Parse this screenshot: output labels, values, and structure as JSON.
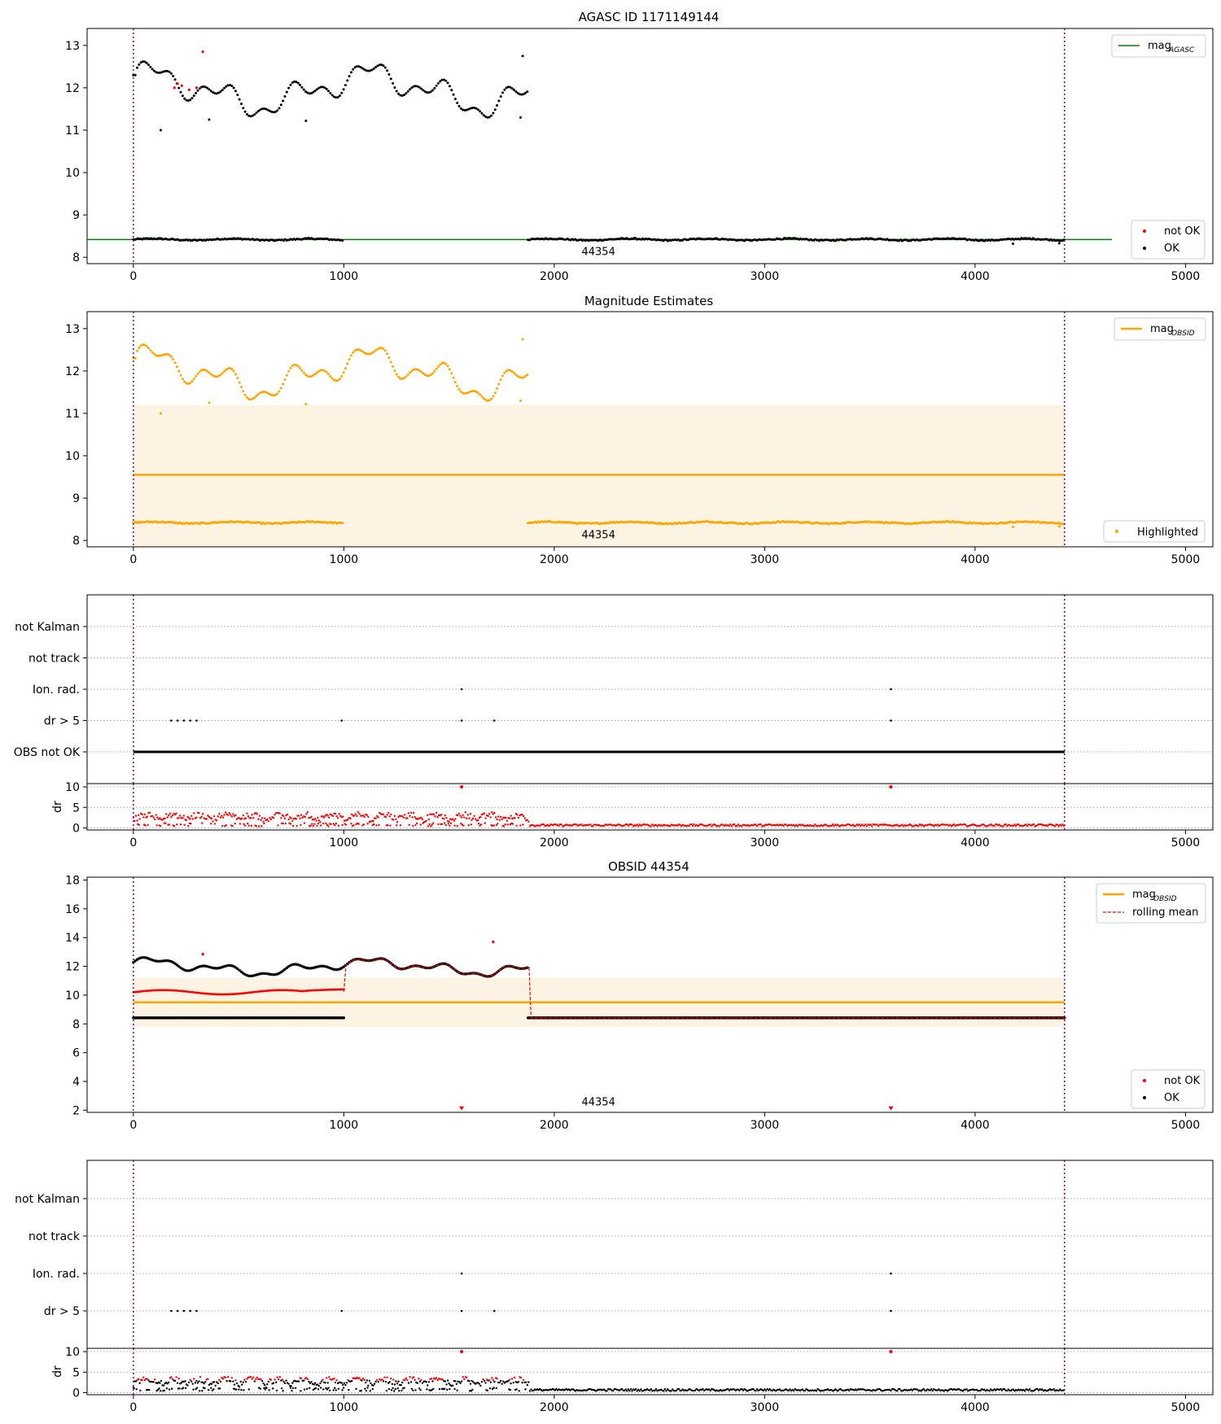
{
  "figure": {
    "colors": {
      "ok": "#000000",
      "not_ok": "#ff0000",
      "agasc_line": "#008000",
      "obsid_line": "#ffa500",
      "band": "#fdf3e3",
      "vline": "#800080",
      "dr": "#ff0000"
    }
  },
  "chart_data": [
    {
      "type": "scatter",
      "title": "AGASC ID 1171149144",
      "xlim": [
        -220,
        5130
      ],
      "ylim": [
        7.85,
        13.4
      ],
      "xticks": [
        0,
        1000,
        2000,
        3000,
        4000,
        5000
      ],
      "yticks": [
        8,
        9,
        10,
        11,
        12,
        13
      ],
      "vlines": [
        0,
        4425
      ],
      "hline": {
        "value": 8.42,
        "x_range": [
          -220,
          4650
        ],
        "label": "mag",
        "label_sub": "AGASC"
      },
      "annotations": [
        {
          "text": "44354",
          "x": 2210,
          "y": 8.15
        }
      ],
      "legend_top": [
        "mag_AGASC"
      ],
      "legend_bottom": [
        "not OK",
        "OK"
      ],
      "series": [
        {
          "name": "OK",
          "points": "main"
        },
        {
          "name": "not OK",
          "points": [
            [
              195,
              12.0
            ],
            [
              230,
              12.05
            ],
            [
              265,
              11.95
            ],
            [
              300,
              12.0
            ],
            [
              330,
              12.85
            ],
            [
              210,
              12.1
            ]
          ]
        }
      ]
    },
    {
      "type": "scatter",
      "title": "Magnitude Estimates",
      "xlim": [
        -220,
        5130
      ],
      "ylim": [
        7.85,
        13.4
      ],
      "xticks": [
        0,
        1000,
        2000,
        3000,
        4000,
        5000
      ],
      "yticks": [
        8,
        9,
        10,
        11,
        12,
        13
      ],
      "vlines": [
        0,
        4425
      ],
      "band": {
        "x": [
          0,
          4425
        ],
        "y": [
          7.85,
          11.2
        ]
      },
      "hline": {
        "value": 9.55,
        "x_range": [
          0,
          4425
        ],
        "label": "mag",
        "label_sub": "OBSID"
      },
      "annotations": [
        {
          "text": "44354",
          "x": 2210,
          "y": 8.15
        }
      ],
      "legend_top": [
        "mag_OBSID"
      ],
      "legend_bottom": [
        "Highlighted"
      ]
    },
    {
      "type": "scatter",
      "categories": [
        "not Kalman",
        "not track",
        "Ion. rad.",
        "dr > 5",
        "OBS not OK"
      ],
      "xlim": [
        -220,
        5130
      ],
      "xticks": [
        0,
        1000,
        2000,
        3000,
        4000,
        5000
      ],
      "vlines": [
        0,
        4425
      ],
      "flags": {
        "Ion. rad.": [
          1560,
          3600
        ],
        "dr > 5": [
          180,
          210,
          240,
          270,
          300,
          990,
          1560,
          1715,
          3600
        ],
        "OBS not OK": "continuous 0-4425"
      },
      "dr_panel": {
        "ylabel": "dr",
        "yticks": [
          0,
          5,
          10
        ],
        "ylim": [
          -0.5,
          10.8
        ],
        "spikes_at_10": [
          1560,
          3600
        ]
      }
    },
    {
      "type": "scatter",
      "title": "OBSID 44354",
      "xlim": [
        -220,
        5130
      ],
      "ylim": [
        1.85,
        18.2
      ],
      "xticks": [
        0,
        1000,
        2000,
        3000,
        4000,
        5000
      ],
      "yticks": [
        2,
        4,
        6,
        8,
        10,
        12,
        14,
        16,
        18
      ],
      "vlines": [
        0,
        4425
      ],
      "band": {
        "x": [
          0,
          4425
        ],
        "y": [
          7.8,
          11.2
        ]
      },
      "hline": {
        "value": 9.5,
        "x_range": [
          0,
          4425
        ],
        "label": "mag",
        "label_sub": "OBSID"
      },
      "annotations": [
        {
          "text": "44354",
          "x": 2210,
          "y": 2.6
        }
      ],
      "markers_low": [
        1560,
        3600
      ],
      "legend_top": [
        "mag_OBSID",
        "rolling mean"
      ],
      "legend_bottom": [
        "not OK",
        "OK"
      ]
    },
    {
      "type": "scatter",
      "categories": [
        "not Kalman",
        "not track",
        "Ion. rad.",
        "dr > 5"
      ],
      "xlim": [
        -220,
        5130
      ],
      "xticks": [
        0,
        1000,
        2000,
        3000,
        4000,
        5000
      ],
      "vlines": [
        0,
        4425
      ],
      "flags": {
        "Ion. rad.": [
          1560,
          3600
        ],
        "dr > 5": [
          180,
          210,
          240,
          270,
          300,
          990,
          1560,
          1715,
          3600
        ]
      },
      "dr_panel": {
        "ylabel": "dr",
        "yticks": [
          0,
          5,
          10
        ],
        "ylim": [
          -0.5,
          10.8
        ],
        "spikes_at_10": [
          1560,
          3600
        ]
      }
    }
  ],
  "labels": {
    "title1": "AGASC ID 1171149144",
    "title2": "Magnitude Estimates",
    "title4": "OBSID 44354",
    "mag": "mag",
    "sub_agasc": "AGASC",
    "sub_obsid": "OBSID",
    "not_ok": "not OK",
    "ok": "OK",
    "highlighted": "Highlighted",
    "rolling_mean": "rolling mean",
    "obsid_annot": "44354",
    "dr": "dr"
  }
}
